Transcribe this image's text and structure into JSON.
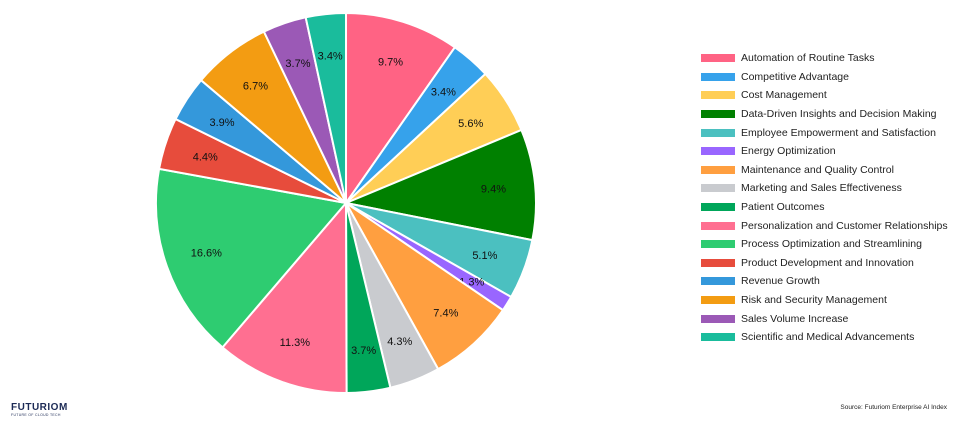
{
  "chart_data": {
    "type": "pie",
    "title": "",
    "categories": [
      "Automation of Routine Tasks",
      "Competitive Advantage",
      "Cost Management",
      "Data-Driven Insights and Decision Making",
      "Employee Empowerment and Satisfaction",
      "Energy Optimization",
      "Maintenance and Quality Control",
      "Marketing and Sales Effectiveness",
      "Patient Outcomes",
      "Personalization and Customer Relationships",
      "Process Optimization and Streamlining",
      "Product Development and Innovation",
      "Revenue Growth",
      "Risk and Security Management",
      "Sales Volume Increase",
      "Scientific and Medical Advancements"
    ],
    "values": [
      9.7,
      3.4,
      5.6,
      9.4,
      5.1,
      1.3,
      7.4,
      4.3,
      3.7,
      11.3,
      16.6,
      4.4,
      3.9,
      6.7,
      3.7,
      3.4
    ],
    "labels": [
      "9.7%",
      "3.4%",
      "5.6%",
      "9.4%",
      "5.1%",
      "1.3%",
      "7.4%",
      "4.3%",
      "3.7%",
      "11.3%",
      "16.6%",
      "4.4%",
      "3.9%",
      "6.7%",
      "3.7%",
      "3.4%"
    ],
    "colors": [
      "#FF6384",
      "#36A2EB",
      "#FFCE56",
      "#008000",
      "#4BC0C0",
      "#9966FF",
      "#FF9F40",
      "#C9CBCF",
      "#00A65A",
      "#FF6F91",
      "#2ECC71",
      "#E74C3C",
      "#3498DB",
      "#F39C12",
      "#9B59B6",
      "#1ABC9C"
    ],
    "legend_position": "right"
  },
  "logo": {
    "name": "FUTURIOM",
    "tagline": "FUTURE OF CLOUD TECH"
  },
  "source": "Source: Futuriom Enterprise AI Index"
}
